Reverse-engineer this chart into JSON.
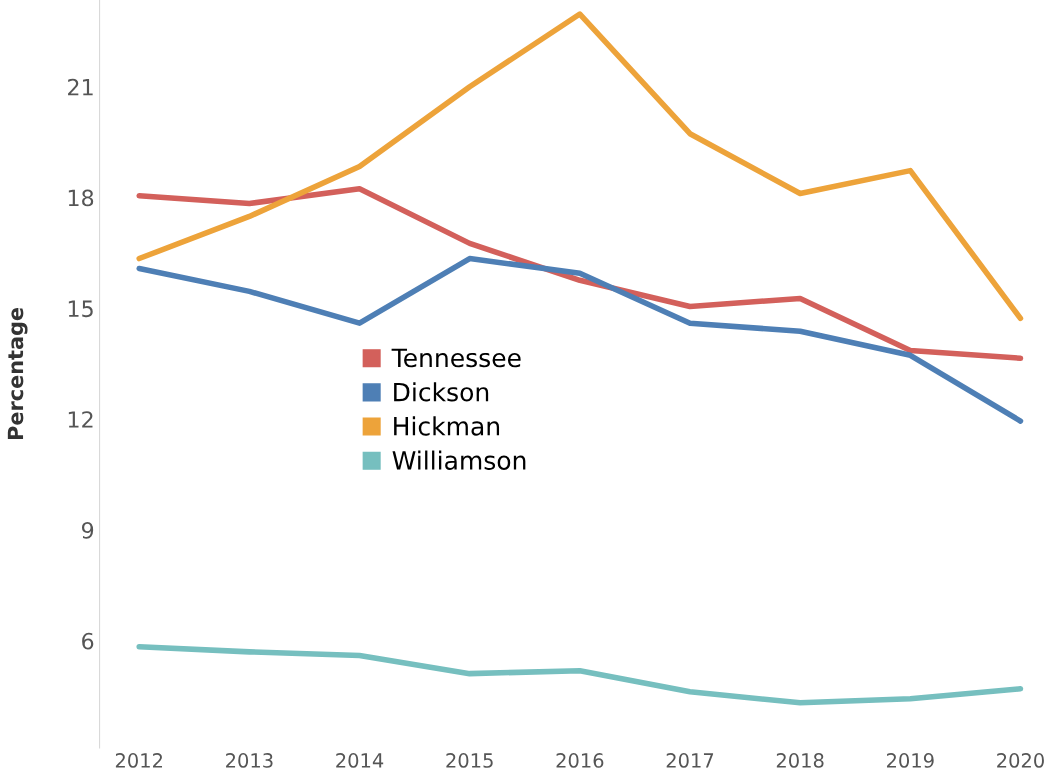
{
  "chart_data": {
    "type": "line",
    "ylabel": "Percentage",
    "categories": [
      "2012",
      "2013",
      "2014",
      "2015",
      "2016",
      "2017",
      "2018",
      "2019",
      "2020"
    ],
    "series": [
      {
        "name": "Tennessee",
        "color": "#d3605b",
        "values": [
          18.05,
          17.84,
          18.24,
          16.76,
          15.76,
          15.05,
          15.27,
          13.86,
          13.65
        ]
      },
      {
        "name": "Dickson",
        "color": "#4e7fb5",
        "values": [
          16.08,
          15.46,
          14.6,
          16.35,
          15.95,
          14.6,
          14.38,
          13.73,
          11.95
        ]
      },
      {
        "name": "Hickman",
        "color": "#eda33a",
        "values": [
          16.35,
          17.49,
          18.84,
          21.0,
          22.97,
          19.73,
          18.11,
          18.73,
          14.73
        ]
      },
      {
        "name": "Williamson",
        "color": "#76bfbf",
        "values": [
          5.84,
          5.7,
          5.6,
          5.11,
          5.19,
          4.62,
          4.32,
          4.43,
          4.7
        ]
      }
    ],
    "ylim": [
      3.1,
      23.35
    ],
    "yticks": [
      6,
      9,
      12,
      15,
      18,
      21
    ],
    "grid": false,
    "legend": "center",
    "marker": "none",
    "line_style": "solid"
  }
}
